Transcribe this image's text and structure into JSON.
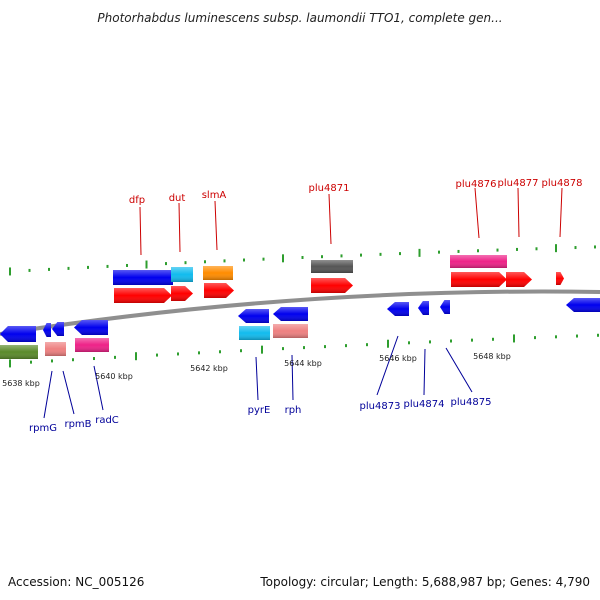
{
  "title": "Photorhabdus luminescens subsp. laumondii TTO1, complete gen...",
  "footer": {
    "accession": "Accession: NC_005126",
    "topology": "Topology: circular; Length: 5,688,987 bp; Genes: 4,790"
  },
  "colors": {
    "backbone": "#8f8f8f",
    "forward_label": "#cc0000",
    "reverse_label": "#000099",
    "tick": "#2e9e2e",
    "red": "#ff0000",
    "pink": "#ee2288",
    "orange": "#ff8c00",
    "cyan": "#11bbee",
    "blue": "#0000ee",
    "gray": "#555555",
    "salmon": "#ee8080",
    "olive": "#5a8a2a"
  },
  "scale_labels": [
    "5638 kbp",
    "5640 kbp",
    "5642 kbp",
    "5644 kbp",
    "5646 kbp",
    "5648 kbp"
  ],
  "forward_labels": [
    "dfp",
    "dut",
    "slmA",
    "plu4871",
    "plu4876",
    "plu4877",
    "plu4878"
  ],
  "reverse_labels": [
    "rpmG",
    "rpmB",
    "radC",
    "pyrE",
    "rph",
    "plu4873",
    "plu4874",
    "plu4875"
  ]
}
